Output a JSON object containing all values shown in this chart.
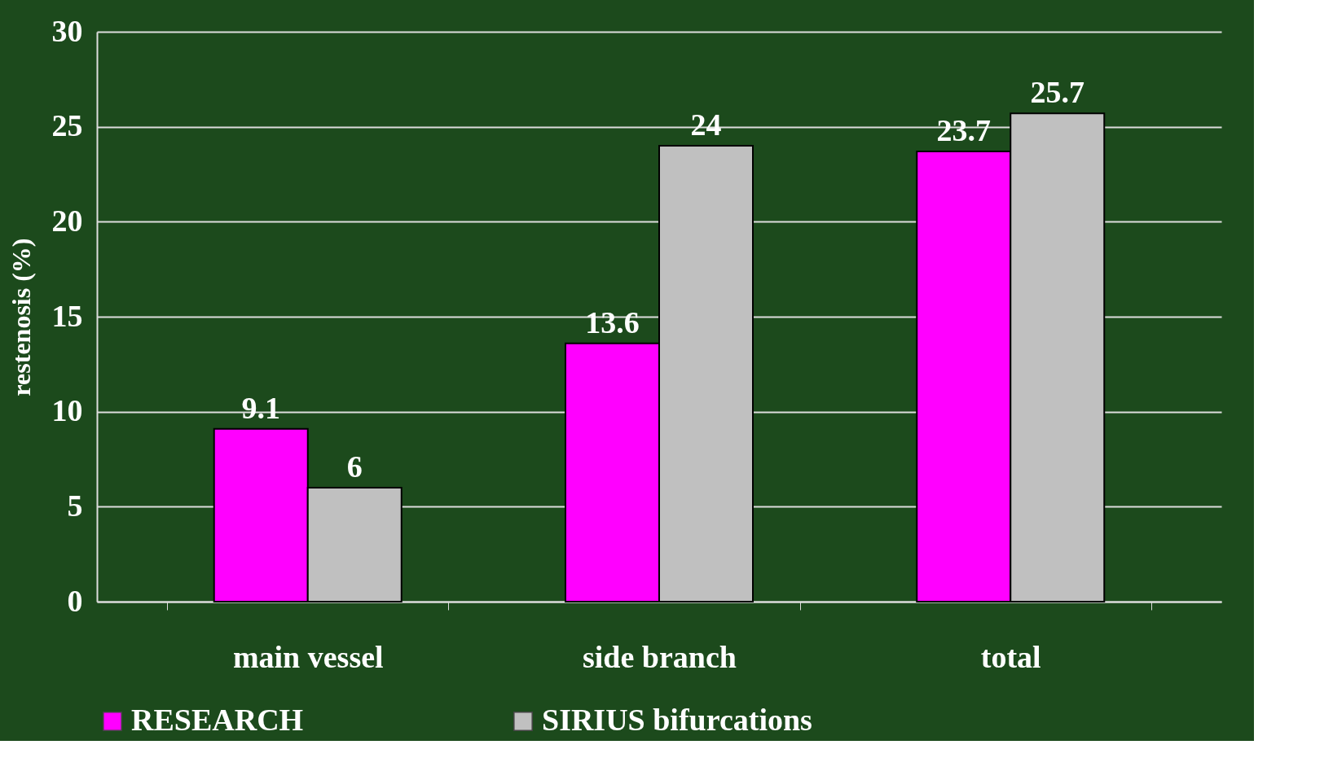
{
  "chart_data": {
    "type": "bar",
    "ylabel": "restenosis (%)",
    "categories": [
      "main vessel",
      "side branch",
      "total"
    ],
    "series": [
      {
        "name": "RESEARCH",
        "color": "#ff00ff",
        "values": [
          9.1,
          13.6,
          23.7
        ]
      },
      {
        "name": "SIRIUS bifurcations",
        "color": "#c0c0c0",
        "values": [
          6,
          24,
          25.7
        ]
      }
    ],
    "ylim": [
      0,
      30
    ],
    "yticks": [
      0,
      5,
      10,
      15,
      20,
      25,
      30
    ],
    "grid": "y",
    "legend": "bottom",
    "data_labels": true
  }
}
